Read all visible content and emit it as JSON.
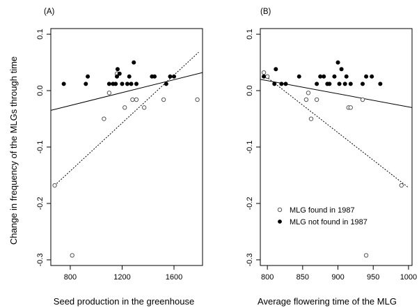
{
  "figure": {
    "ylabel": "Change in frequency of the MLGs  through time"
  },
  "legend": {
    "items": [
      {
        "label": "MLG found in 1987",
        "marker": "open-circle"
      },
      {
        "label": "MLG not found in 1987",
        "marker": "filled-circle"
      }
    ]
  },
  "colors": {
    "open_marker": "#555555",
    "filled_marker": "#000000",
    "line": "#000000",
    "background": "#ffffff"
  },
  "chart_data": [
    {
      "type": "scatter",
      "panel_label": "(A)",
      "xlabel": "Seed production in the greenhouse",
      "ylabel": "Change in frequency of the MLGs  through time",
      "xlim": [
        650,
        1820
      ],
      "ylim": [
        -0.31,
        0.11
      ],
      "xticks": [
        800,
        1200,
        1600
      ],
      "yticks": [
        -0.3,
        -0.2,
        -0.1,
        0.0,
        0.1
      ],
      "ytick_labels": [
        "-0.3",
        "-0.2",
        "-0.1",
        "0.0",
        "0.1"
      ],
      "grid": false,
      "series": [
        {
          "name": "MLG found in 1987",
          "marker": "open",
          "points": [
            [
              680,
              -0.168
            ],
            [
              815,
              -0.292
            ],
            [
              1060,
              -0.05
            ],
            [
              1100,
              -0.004
            ],
            [
              1160,
              0.03
            ],
            [
              1220,
              -0.03
            ],
            [
              1280,
              -0.016
            ],
            [
              1310,
              -0.016
            ],
            [
              1370,
              -0.03
            ],
            [
              1520,
              -0.016
            ],
            [
              1780,
              -0.016
            ]
          ]
        },
        {
          "name": "MLG not found in 1987",
          "marker": "filled",
          "points": [
            [
              750,
              0.012
            ],
            [
              920,
              0.012
            ],
            [
              935,
              0.025
            ],
            [
              1100,
              0.012
            ],
            [
              1130,
              0.012
            ],
            [
              1150,
              0.012
            ],
            [
              1160,
              0.025
            ],
            [
              1165,
              0.038
            ],
            [
              1180,
              0.03
            ],
            [
              1200,
              0.012
            ],
            [
              1240,
              0.012
            ],
            [
              1255,
              0.025
            ],
            [
              1270,
              0.012
            ],
            [
              1290,
              0.05
            ],
            [
              1310,
              0.012
            ],
            [
              1430,
              0.025
            ],
            [
              1450,
              0.025
            ],
            [
              1540,
              0.012
            ],
            [
              1570,
              0.025
            ],
            [
              1600,
              0.025
            ]
          ]
        }
      ],
      "fit_lines": [
        {
          "style": "solid",
          "x": [
            650,
            1820
          ],
          "y": [
            -0.035,
            0.032
          ]
        },
        {
          "style": "dotted",
          "x": [
            680,
            1790
          ],
          "y": [
            -0.168,
            0.068
          ]
        }
      ]
    },
    {
      "type": "scatter",
      "panel_label": "(B)",
      "xlabel": "Average flowering time of the MLG",
      "ylabel": "",
      "xlim": [
        790,
        1005
      ],
      "ylim": [
        -0.31,
        0.11
      ],
      "xticks": [
        800,
        850,
        900,
        950,
        1000
      ],
      "yticks": [
        -0.3,
        -0.2,
        -0.1,
        0.0,
        0.1
      ],
      "ytick_labels": [
        "-0.3",
        "-0.2",
        "-0.1",
        "0.0",
        "0.1"
      ],
      "grid": false,
      "series": [
        {
          "name": "MLG found in 1987",
          "marker": "open",
          "points": [
            [
              795,
              0.032
            ],
            [
              800,
              0.025
            ],
            [
              855,
              -0.016
            ],
            [
              858,
              -0.004
            ],
            [
              862,
              -0.05
            ],
            [
              870,
              -0.016
            ],
            [
              915,
              -0.03
            ],
            [
              918,
              -0.03
            ],
            [
              935,
              -0.016
            ],
            [
              940,
              -0.292
            ],
            [
              990,
              -0.168
            ]
          ]
        },
        {
          "name": "MLG not found in 1987",
          "marker": "filled",
          "points": [
            [
              795,
              0.025
            ],
            [
              810,
              0.012
            ],
            [
              812,
              0.038
            ],
            [
              820,
              0.012
            ],
            [
              826,
              0.012
            ],
            [
              845,
              0.025
            ],
            [
              870,
              0.012
            ],
            [
              875,
              0.025
            ],
            [
              880,
              0.025
            ],
            [
              885,
              0.012
            ],
            [
              888,
              0.012
            ],
            [
              895,
              0.025
            ],
            [
              900,
              0.05
            ],
            [
              902,
              0.012
            ],
            [
              905,
              0.038
            ],
            [
              910,
              0.012
            ],
            [
              912,
              0.025
            ],
            [
              918,
              0.012
            ],
            [
              935,
              0.012
            ],
            [
              940,
              0.025
            ],
            [
              948,
              0.025
            ],
            [
              960,
              0.012
            ]
          ]
        }
      ],
      "fit_lines": [
        {
          "style": "solid",
          "x": [
            790,
            1005
          ],
          "y": [
            0.02,
            -0.03
          ]
        },
        {
          "style": "dotted",
          "x": [
            795,
            1000
          ],
          "y": [
            0.028,
            -0.172
          ]
        }
      ],
      "legend_position": "bottom-center"
    }
  ]
}
